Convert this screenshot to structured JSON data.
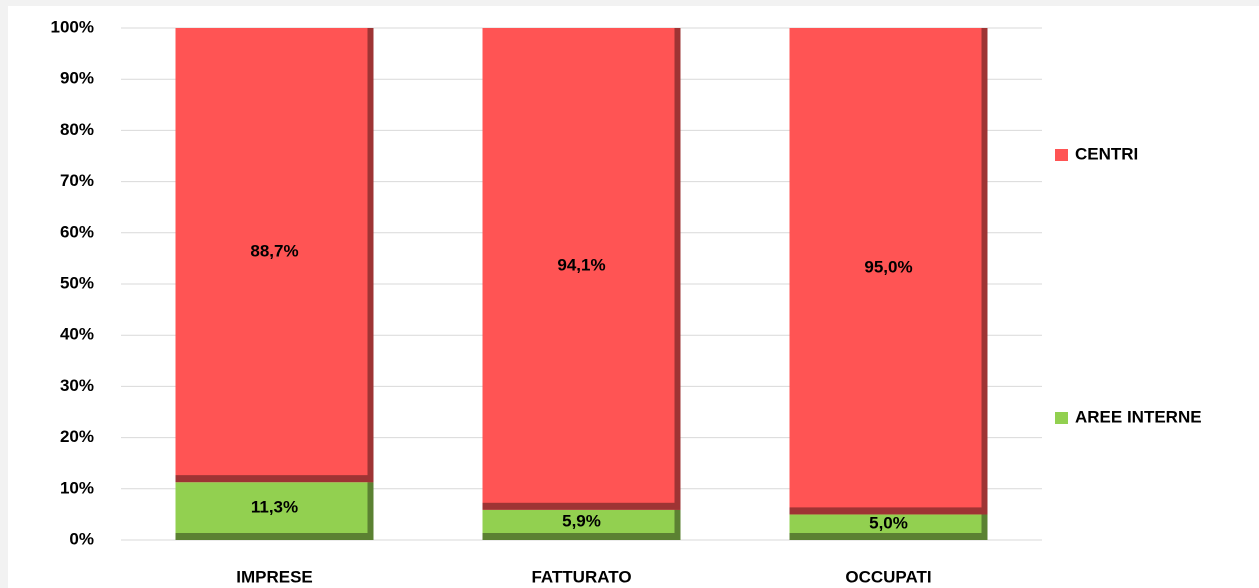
{
  "chart_data": {
    "type": "stacked_bar",
    "categories": [
      "IMPRESE",
      "FATTURATO",
      "OCCUPATI"
    ],
    "series": [
      {
        "name": "AREE INTERNE",
        "color": "#92d050",
        "values": [
          11.3,
          5.9,
          5.0
        ],
        "value_labels": [
          "11,3%",
          "5,9%",
          "5,0%"
        ]
      },
      {
        "name": "CENTRI",
        "color": "#ff5454",
        "values": [
          88.7,
          94.1,
          95.0
        ],
        "value_labels": [
          "88,7%",
          "94,1%",
          "95,0%"
        ]
      }
    ],
    "ylim": [
      0,
      100
    ],
    "yticks": [
      {
        "value": 0,
        "label": "0%"
      },
      {
        "value": 10,
        "label": "10%"
      },
      {
        "value": 20,
        "label": "20%"
      },
      {
        "value": 30,
        "label": "30%"
      },
      {
        "value": 40,
        "label": "40%"
      },
      {
        "value": 50,
        "label": "50%"
      },
      {
        "value": 60,
        "label": "60%"
      },
      {
        "value": 70,
        "label": "70%"
      },
      {
        "value": 80,
        "label": "80%"
      },
      {
        "value": 90,
        "label": "90%"
      },
      {
        "value": 100,
        "label": "100%"
      }
    ],
    "grid": true,
    "legend": "right"
  }
}
